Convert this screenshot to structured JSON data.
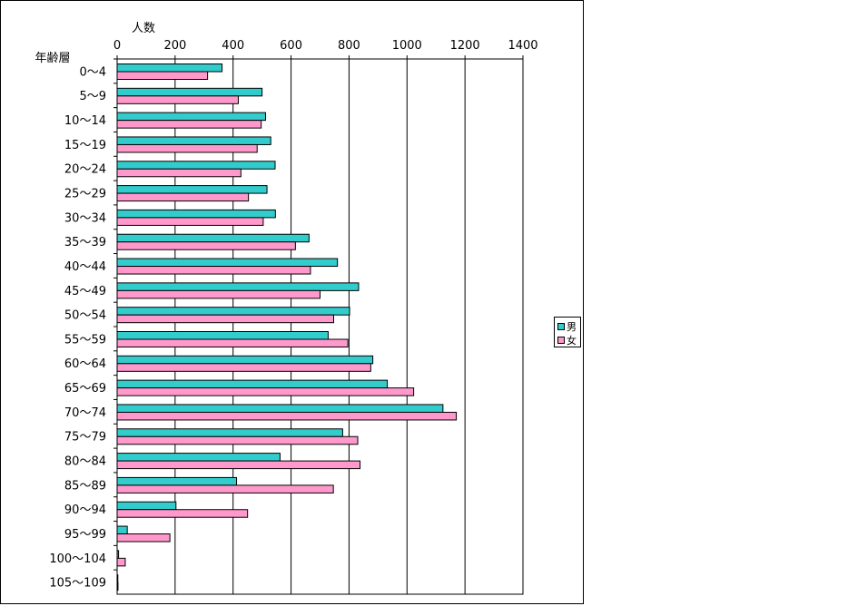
{
  "chart_data": {
    "type": "bar",
    "orientation": "horizontal",
    "xlabel": "人数",
    "ylabel": "年齢層",
    "xlim": [
      0,
      1400
    ],
    "xticks": [
      0,
      200,
      400,
      600,
      800,
      1000,
      1200,
      1400
    ],
    "grid": true,
    "legend_position": "right",
    "categories": [
      "0〜4",
      "5〜9",
      "10〜14",
      "15〜19",
      "20〜24",
      "25〜29",
      "30〜34",
      "35〜39",
      "40〜44",
      "45〜49",
      "50〜54",
      "55〜59",
      "60〜64",
      "65〜69",
      "70〜74",
      "75〜79",
      "80〜84",
      "85〜89",
      "90〜94",
      "95〜99",
      "100〜104",
      "105〜109"
    ],
    "series": [
      {
        "name": "男",
        "color": "#33CCCC",
        "values": [
          362,
          500,
          512,
          530,
          545,
          517,
          546,
          662,
          760,
          833,
          802,
          728,
          882,
          932,
          1124,
          778,
          562,
          412,
          203,
          35,
          5,
          2
        ]
      },
      {
        "name": "女",
        "color": "#FF99CC",
        "values": [
          312,
          418,
          497,
          483,
          427,
          453,
          504,
          615,
          667,
          700,
          747,
          796,
          875,
          1023,
          1170,
          830,
          838,
          746,
          450,
          182,
          28,
          3
        ]
      }
    ]
  }
}
